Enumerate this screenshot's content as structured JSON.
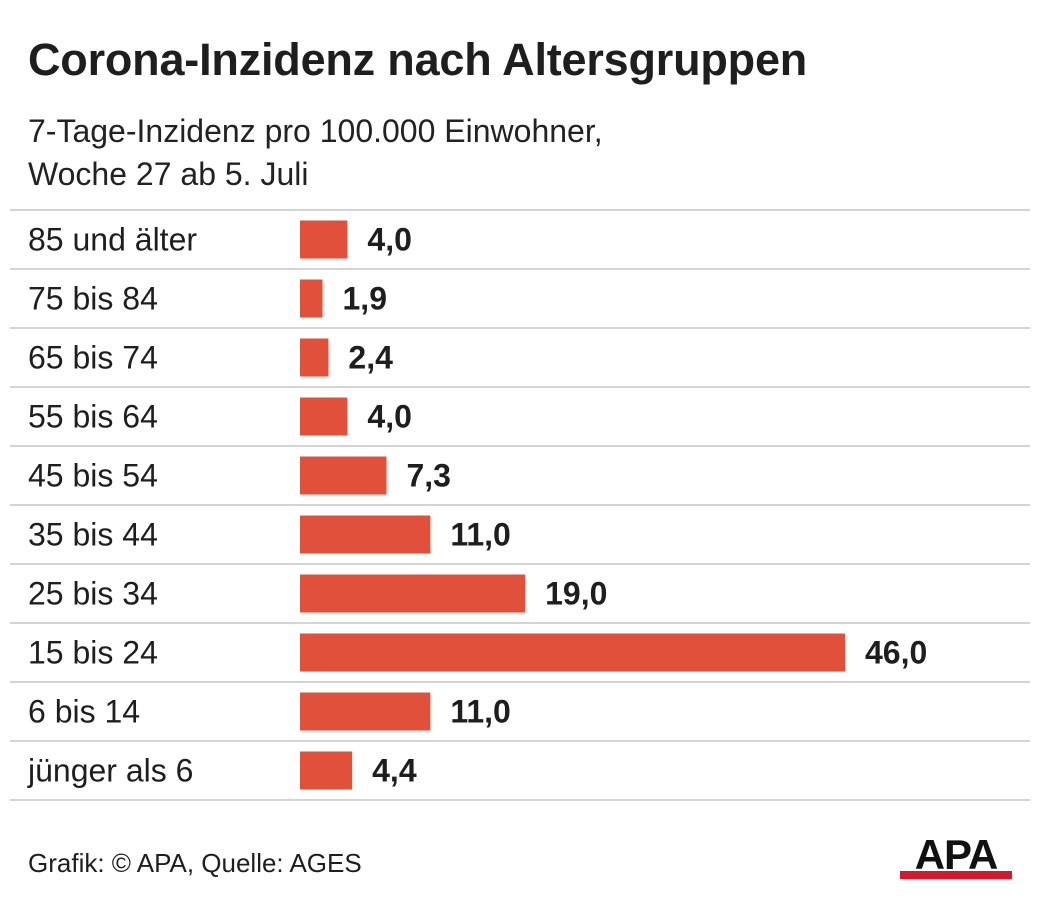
{
  "title": "Corona-Inzidenz nach Altersgruppen",
  "subtitle": {
    "line1": "7-Tage-Inzidenz pro 100.000 Einwohner,",
    "line2": "Woche 27 ab 5. Juli"
  },
  "footer": "Grafik: © APA, Quelle: AGES",
  "logo_text": "APA",
  "colors": {
    "bar": "#e0503a",
    "grid": "#d4d4d4",
    "text": "#1e1e1e",
    "logo_red": "#d7172f"
  },
  "chart_data": {
    "type": "bar",
    "orientation": "horizontal",
    "categories": [
      "85 und älter",
      "75 bis 84",
      "65 bis 74",
      "55 bis 64",
      "45 bis 54",
      "35 bis 44",
      "25 bis 34",
      "15 bis 24",
      "6 bis 14",
      "jünger als 6"
    ],
    "values": [
      4.0,
      1.9,
      2.4,
      4.0,
      7.3,
      11.0,
      19.0,
      46.0,
      11.0,
      4.4
    ],
    "value_labels": [
      "4,0",
      "1,9",
      "2,4",
      "4,0",
      "7,3",
      "11,0",
      "19,0",
      "46,0",
      "11,0",
      "4,4"
    ],
    "xlim": [
      0,
      46
    ],
    "grid": "horizontal row separators",
    "legend": "none"
  }
}
